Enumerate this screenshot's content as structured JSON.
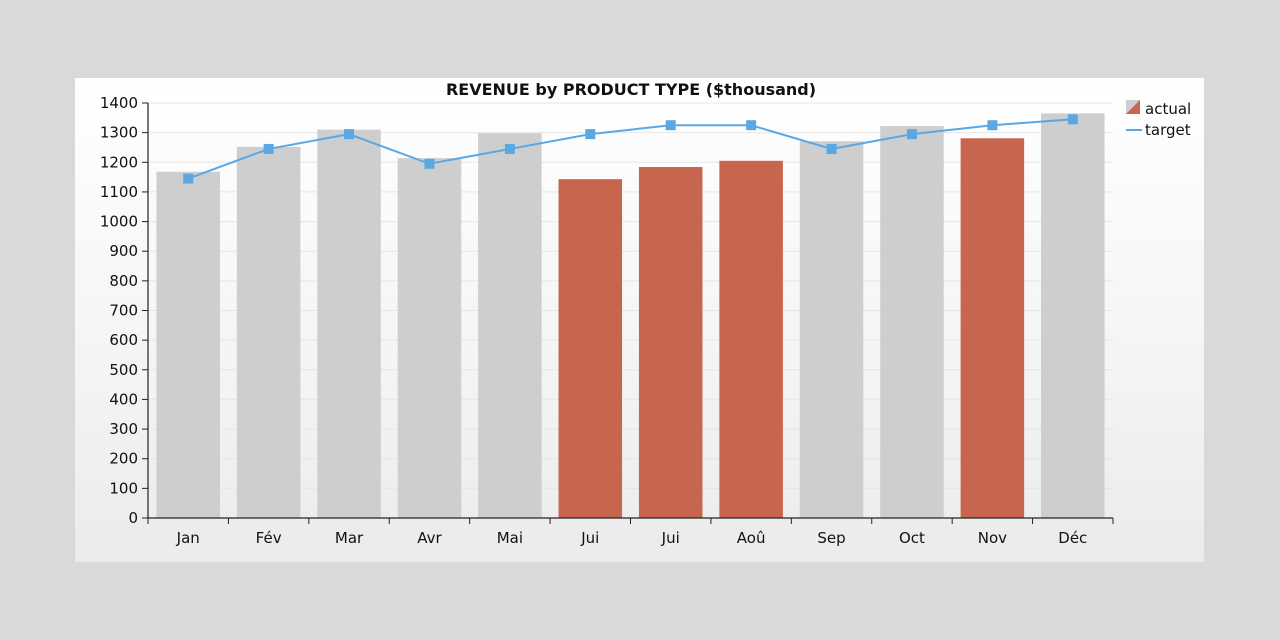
{
  "chart_data": {
    "type": "bar",
    "title": "REVENUE by PRODUCT TYPE ($thousand)",
    "categories": [
      "Jan",
      "Fév",
      "Mar",
      "Avr",
      "Mai",
      "Jui",
      "Jui",
      "Aoû",
      "Sep",
      "Oct",
      "Nov",
      "Déc"
    ],
    "series": [
      {
        "name": "actual",
        "type": "bar",
        "values": [
          1168,
          1252,
          1310,
          1214,
          1298,
          1143,
          1184,
          1205,
          1271,
          1322,
          1281,
          1365
        ],
        "below_target_color": "#c8654e",
        "met_target_color": "#cecece"
      },
      {
        "name": "target",
        "type": "line",
        "values": [
          1145,
          1245,
          1295,
          1195,
          1245,
          1295,
          1325,
          1325,
          1245,
          1295,
          1325,
          1345
        ],
        "color": "#5aa8e3"
      }
    ],
    "ylim": [
      0,
      1400
    ],
    "yticks": [
      0,
      100,
      200,
      300,
      400,
      500,
      600,
      700,
      800,
      900,
      1000,
      1100,
      1200,
      1300,
      1400
    ],
    "grid": true,
    "legend_position": "top-right"
  }
}
